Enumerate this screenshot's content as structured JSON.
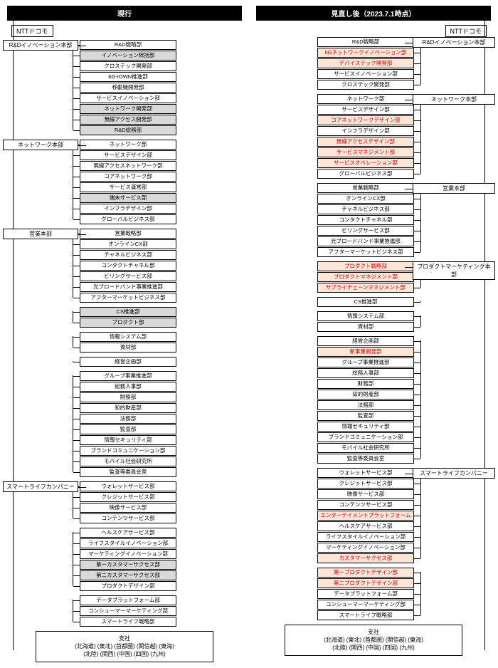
{
  "left": {
    "header": "現行",
    "company": "NTTドコモ",
    "branch_title": "支社",
    "branch_line1": "(北海道) (東北) (首都圏) (関信越) (東海)",
    "branch_line2": "(北陸) (関西) (中国) (四国) (九州)",
    "groups": [
      {
        "division": "R&Dイノベーション本部",
        "depts": [
          {
            "t": "R&D戦略部"
          },
          {
            "t": "イノベーション統括部",
            "s": "gray"
          },
          {
            "t": "クロステック開発部"
          },
          {
            "t": "6G-IOWN推進部"
          },
          {
            "t": "移動機開発部"
          },
          {
            "t": "サービスイノベーション部"
          },
          {
            "t": "ネットワーク開発部",
            "s": "gray"
          },
          {
            "t": "無線アクセス開発部",
            "s": "gray"
          },
          {
            "t": "R&D総務部",
            "s": "gray"
          }
        ]
      },
      {
        "division": "ネットワーク本部",
        "depts": [
          {
            "t": "ネットワーク部"
          },
          {
            "t": "サービスデザイン部"
          },
          {
            "t": "無線アクセスネットワーク部"
          },
          {
            "t": "コアネットワーク部"
          },
          {
            "t": "サービス運営部"
          },
          {
            "t": "端末サービス部",
            "s": "gray"
          },
          {
            "t": "インフラデザイン部"
          },
          {
            "t": "グローバルビジネス部"
          }
        ]
      },
      {
        "division": "営業本部",
        "depts": [
          {
            "t": "営業戦略部"
          },
          {
            "t": "オンラインCX部"
          },
          {
            "t": "チャネルビジネス部"
          },
          {
            "t": "コンタクトチャネル部"
          },
          {
            "t": "ビリングサービス部"
          },
          {
            "t": "光ブロードバンド事業推進部"
          },
          {
            "t": "アフターマーケットビジネス部"
          }
        ]
      },
      {
        "depts": [
          {
            "t": "CS推進部",
            "s": "gray"
          },
          {
            "t": "プロダクト部",
            "s": "gray"
          }
        ]
      },
      {
        "depts": [
          {
            "t": "情報システム部"
          },
          {
            "t": "資材部"
          }
        ]
      },
      {
        "depts": [
          {
            "t": "経営企画部"
          }
        ]
      },
      {
        "depts": [
          {
            "t": "グループ事業推進部"
          },
          {
            "t": "総務人事部"
          },
          {
            "t": "財務部"
          },
          {
            "t": "知的財産部"
          },
          {
            "t": "法務部"
          },
          {
            "t": "監査部"
          },
          {
            "t": "情報セキュリティ部"
          },
          {
            "t": "ブランドコミュニケーション部"
          },
          {
            "t": "モバイル社会研究所"
          },
          {
            "t": "監査等委員会室"
          }
        ]
      },
      {
        "division": "スマートライフカンパニー",
        "depts": [
          {
            "t": "ウォレットサービス部"
          },
          {
            "t": "クレジットサービス部"
          },
          {
            "t": "映像サービス部"
          },
          {
            "t": "コンテンツサービス部"
          }
        ]
      },
      {
        "depts": [
          {
            "t": "ヘルスケアサービス部"
          },
          {
            "t": "ライフスタイルイノベーション部"
          },
          {
            "t": "マーケティングイノベーション部"
          },
          {
            "t": "第一カスタマーサクセス部",
            "s": "gray"
          },
          {
            "t": "第二カスタマーサクセス部",
            "s": "gray"
          },
          {
            "t": "プロダクトデザイン部"
          }
        ]
      },
      {
        "depts": [
          {
            "t": "データプラットフォーム部"
          },
          {
            "t": "コンシューマーマーケティング部"
          },
          {
            "t": "スマートライフ戦略部"
          }
        ]
      }
    ]
  },
  "right": {
    "header": "見直し後（2023.7.1時点）",
    "company": "NTTドコモ",
    "branch_title": "支社",
    "branch_line1": "(北海道) (東北) (首都圏) (関信越) (東海)",
    "branch_line2": "(北陸) (関西) (中国) (四国) (九州)",
    "groups": [
      {
        "division": "R&Dイノベーション本部",
        "depts": [
          {
            "t": "R&D戦略部"
          },
          {
            "t": "6Gネットワークイノベーション部",
            "s": "pink"
          },
          {
            "t": "デバイステック開発部",
            "s": "pink"
          },
          {
            "t": "サービスイノベーション部"
          },
          {
            "t": "クロステック開発部"
          }
        ]
      },
      {
        "division": "ネットワーク本部",
        "depts": [
          {
            "t": "ネットワーク部"
          },
          {
            "t": "サービスデザイン部"
          },
          {
            "t": "コアネットワークデザイン部",
            "s": "pink"
          },
          {
            "t": "インフラデザイン部"
          },
          {
            "t": "無線アクセスデザイン部",
            "s": "pink"
          },
          {
            "t": "サービスマネジメント部",
            "s": "pink"
          },
          {
            "t": "サービスオペレーション部",
            "s": "pink"
          },
          {
            "t": "グローバルビジネス部"
          }
        ]
      },
      {
        "division": "営業本部",
        "depts": [
          {
            "t": "営業戦略部"
          },
          {
            "t": "オンラインCX部"
          },
          {
            "t": "チャネルビジネス部"
          },
          {
            "t": "コンタクトチャネル部"
          },
          {
            "t": "ビリングサービス部"
          },
          {
            "t": "光ブロードバンド事業推進部"
          },
          {
            "t": "アフターマーケットビジネス部"
          }
        ]
      },
      {
        "division": "プロダクトマーケティング本部",
        "depts": [
          {
            "t": "プロダクト戦略部",
            "s": "pink"
          },
          {
            "t": "プロダクトマネジメント部",
            "s": "pink"
          },
          {
            "t": "サプライチェーンマネジメント部",
            "s": "pink"
          }
        ]
      },
      {
        "depts": [
          {
            "t": "CS推進部"
          }
        ]
      },
      {
        "depts": [
          {
            "t": "情報システム部"
          },
          {
            "t": "資材部"
          }
        ]
      },
      {
        "depts": [
          {
            "t": "経営企画部"
          },
          {
            "t": "新事業開発部",
            "s": "pink"
          },
          {
            "t": "グループ事業推進部"
          },
          {
            "t": "総務人事部"
          },
          {
            "t": "財務部"
          },
          {
            "t": "知的財産部"
          },
          {
            "t": "法務部"
          },
          {
            "t": "監査部"
          },
          {
            "t": "情報セキュリティ部"
          },
          {
            "t": "ブランドコミュニケーション部"
          },
          {
            "t": "モバイル社会研究所"
          },
          {
            "t": "監査等委員会室"
          }
        ]
      },
      {
        "division": "スマートライフカンパニー",
        "depts": [
          {
            "t": "ウォレットサービス部"
          },
          {
            "t": "クレジットサービス部"
          },
          {
            "t": "映像サービス部"
          },
          {
            "t": "コンテンツサービス部"
          },
          {
            "t": "エンターテイメントプラットフォーム部",
            "s": "pink"
          },
          {
            "t": "ヘルスケアサービス部"
          },
          {
            "t": "ライフスタイルイノベーション部"
          },
          {
            "t": "マーケティングイノベーション部"
          },
          {
            "t": "カスタマーサクセス部",
            "s": "pink"
          }
        ]
      },
      {
        "depts": [
          {
            "t": "第一プロダクトデザイン部",
            "s": "pink"
          },
          {
            "t": "第二プロダクトデザイン部",
            "s": "pink"
          },
          {
            "t": "データプラットフォーム部"
          },
          {
            "t": "コンシューマーマーケティング部"
          },
          {
            "t": "スマートライフ戦略部"
          }
        ]
      }
    ]
  }
}
